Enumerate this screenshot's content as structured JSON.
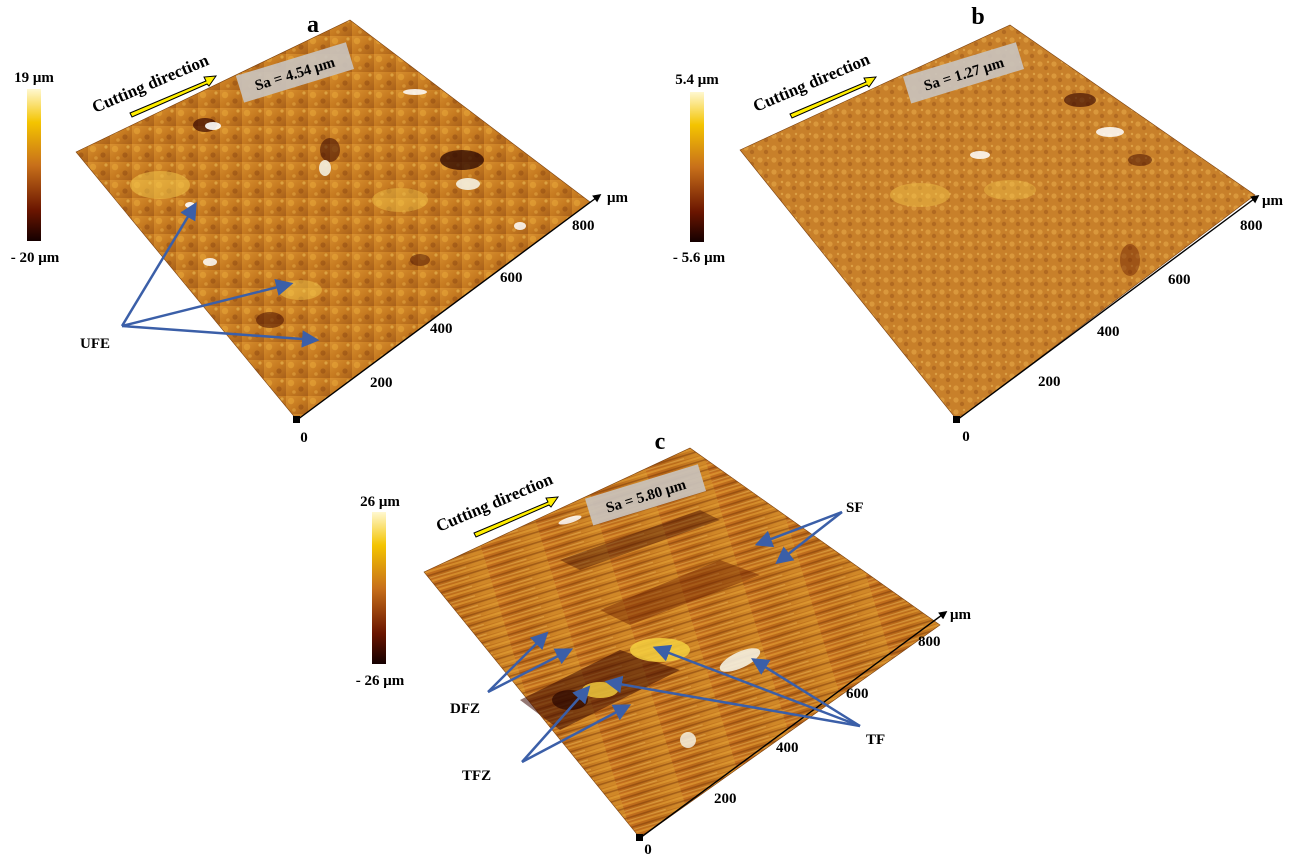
{
  "panels": [
    {
      "id": "a",
      "label": "a",
      "sa_label": "Sa = 4.54 μm",
      "cutting_label": "Cutting direction",
      "scale_max": "19 μm",
      "scale_min": "- 20 μm",
      "axis_unit": "μm",
      "ticks": [
        "0",
        "200",
        "400",
        "600",
        "800"
      ],
      "annotations": [
        {
          "label": "UFE",
          "count": 3
        }
      ]
    },
    {
      "id": "b",
      "label": "b",
      "sa_label": "Sa = 1.27 μm",
      "cutting_label": "Cutting direction",
      "scale_max": "5.4 μm",
      "scale_min": "- 5.6 μm",
      "axis_unit": "μm",
      "ticks": [
        "0",
        "200",
        "400",
        "600",
        "800"
      ],
      "annotations": []
    },
    {
      "id": "c",
      "label": "c",
      "sa_label": "Sa = 5.80 μm",
      "cutting_label": "Cutting direction",
      "scale_max": "26 μm",
      "scale_min": "- 26 μm",
      "axis_unit": "μm",
      "ticks": [
        "0",
        "200",
        "400",
        "600",
        "800"
      ],
      "annotations": [
        {
          "label": "SF",
          "count": 2
        },
        {
          "label": "DFZ",
          "count": 2
        },
        {
          "label": "TFZ",
          "count": 2
        },
        {
          "label": "TF",
          "count": 3
        }
      ]
    }
  ],
  "colors": {
    "scale_top": "#fff8d0",
    "scale_mid_high": "#f4c400",
    "scale_mid": "#c8701a",
    "scale_low": "#6a1500",
    "scale_bottom": "#150000",
    "surface_base": "#c67a20",
    "arrow": "#3b5fa8",
    "cutting_arrow": "#ffee00",
    "sa_box": "#c9c2bc"
  }
}
